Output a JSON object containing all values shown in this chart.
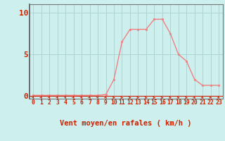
{
  "x": [
    0,
    1,
    2,
    3,
    4,
    5,
    6,
    7,
    8,
    9,
    10,
    11,
    12,
    13,
    14,
    15,
    16,
    17,
    18,
    19,
    20,
    21,
    22,
    23
  ],
  "y": [
    0.1,
    0.1,
    0.1,
    0.1,
    0.1,
    0.1,
    0.1,
    0.1,
    0.1,
    0.2,
    2.0,
    6.5,
    8.0,
    8.0,
    8.0,
    9.2,
    9.2,
    7.5,
    5.0,
    4.2,
    2.0,
    1.3,
    1.3,
    1.3
  ],
  "line_color": "#f08080",
  "marker_color": "#f08080",
  "bg_color": "#cdf0ef",
  "grid_color": "#aacfcf",
  "axis_color": "#777777",
  "tick_color": "#cc2200",
  "xlabel": "Vent moyen/en rafales ( km/h )",
  "yticks": [
    0,
    5,
    10
  ],
  "ylim": [
    -0.3,
    11.0
  ],
  "xlim": [
    -0.5,
    23.5
  ],
  "xlabel_fontsize": 7.5,
  "ytick_fontsize": 8,
  "xtick_fontsize": 5.8,
  "red_line_color": "#cc2200",
  "arrow_angles": [
    -50,
    -40,
    -50,
    -45,
    -55,
    -45,
    -50,
    -40,
    -55,
    -30,
    -10,
    -5,
    -5,
    -5,
    -5,
    -5,
    -5,
    -15,
    -15,
    -10,
    -30,
    -25,
    -20,
    -20
  ]
}
